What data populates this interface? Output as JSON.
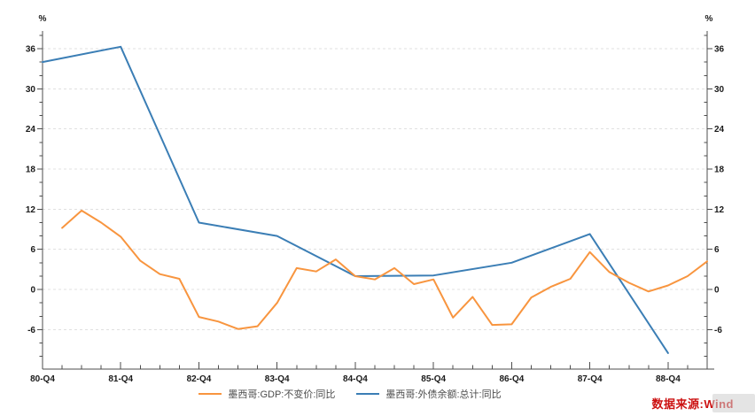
{
  "chart_data": {
    "type": "line",
    "title": "",
    "x_categories": [
      "80-Q4",
      "81-Q1",
      "81-Q2",
      "81-Q3",
      "81-Q4",
      "82-Q1",
      "82-Q2",
      "82-Q3",
      "82-Q4",
      "83-Q1",
      "83-Q2",
      "83-Q3",
      "83-Q4",
      "84-Q1",
      "84-Q2",
      "84-Q3",
      "84-Q4",
      "85-Q1",
      "85-Q2",
      "85-Q3",
      "85-Q4",
      "86-Q1",
      "86-Q2",
      "86-Q3",
      "86-Q4",
      "87-Q1",
      "87-Q2",
      "87-Q3",
      "87-Q4",
      "88-Q1",
      "88-Q2",
      "88-Q3",
      "88-Q4",
      "89-Q1",
      "89-Q2"
    ],
    "x_label_every": 4,
    "x_tick_labels": [
      "80-Q4",
      "81-Q4",
      "82-Q4",
      "83-Q4",
      "84-Q4",
      "85-Q4",
      "86-Q4",
      "87-Q4",
      "88-Q4"
    ],
    "y_unit_left": "%",
    "y_unit_right": "%",
    "ylim": [
      -11.9,
      38.65
    ],
    "y_major_ticks": [
      36,
      30,
      24,
      18,
      12,
      6,
      0,
      -6
    ],
    "y_minor_step": 2,
    "grid": "dashed-horizontal",
    "legend_position": "bottom-center",
    "colors": {
      "axis": "#4d4d4d",
      "grid": "#e0e0e0",
      "text": "#1a1a1a"
    },
    "series": [
      {
        "name": "墨西哥:GDP:不变价:同比",
        "color": "#F8953F",
        "values": [
          null,
          9.2,
          11.8,
          10.0,
          7.9,
          4.3,
          2.3,
          1.6,
          -4.1,
          -4.8,
          -5.9,
          -5.5,
          -2.0,
          3.2,
          2.7,
          4.5,
          2.0,
          1.5,
          3.2,
          0.8,
          1.5,
          -4.2,
          -1.1,
          -5.3,
          -5.2,
          -1.2,
          0.4,
          1.6,
          5.6,
          2.6,
          1.0,
          -0.3,
          0.6,
          2.0,
          4.2
        ]
      },
      {
        "name": "墨西哥:外债余额:总计:同比",
        "color": "#3B7EB5",
        "values": [
          34.0,
          null,
          null,
          null,
          36.3,
          null,
          null,
          null,
          10.0,
          null,
          null,
          null,
          8.0,
          null,
          null,
          null,
          2.0,
          null,
          null,
          null,
          2.1,
          null,
          null,
          null,
          4.0,
          null,
          null,
          null,
          8.3,
          null,
          null,
          null,
          -9.5,
          null,
          null
        ]
      }
    ]
  },
  "source_note": {
    "text": "数据来源:Wind",
    "color": "#CC1111"
  }
}
